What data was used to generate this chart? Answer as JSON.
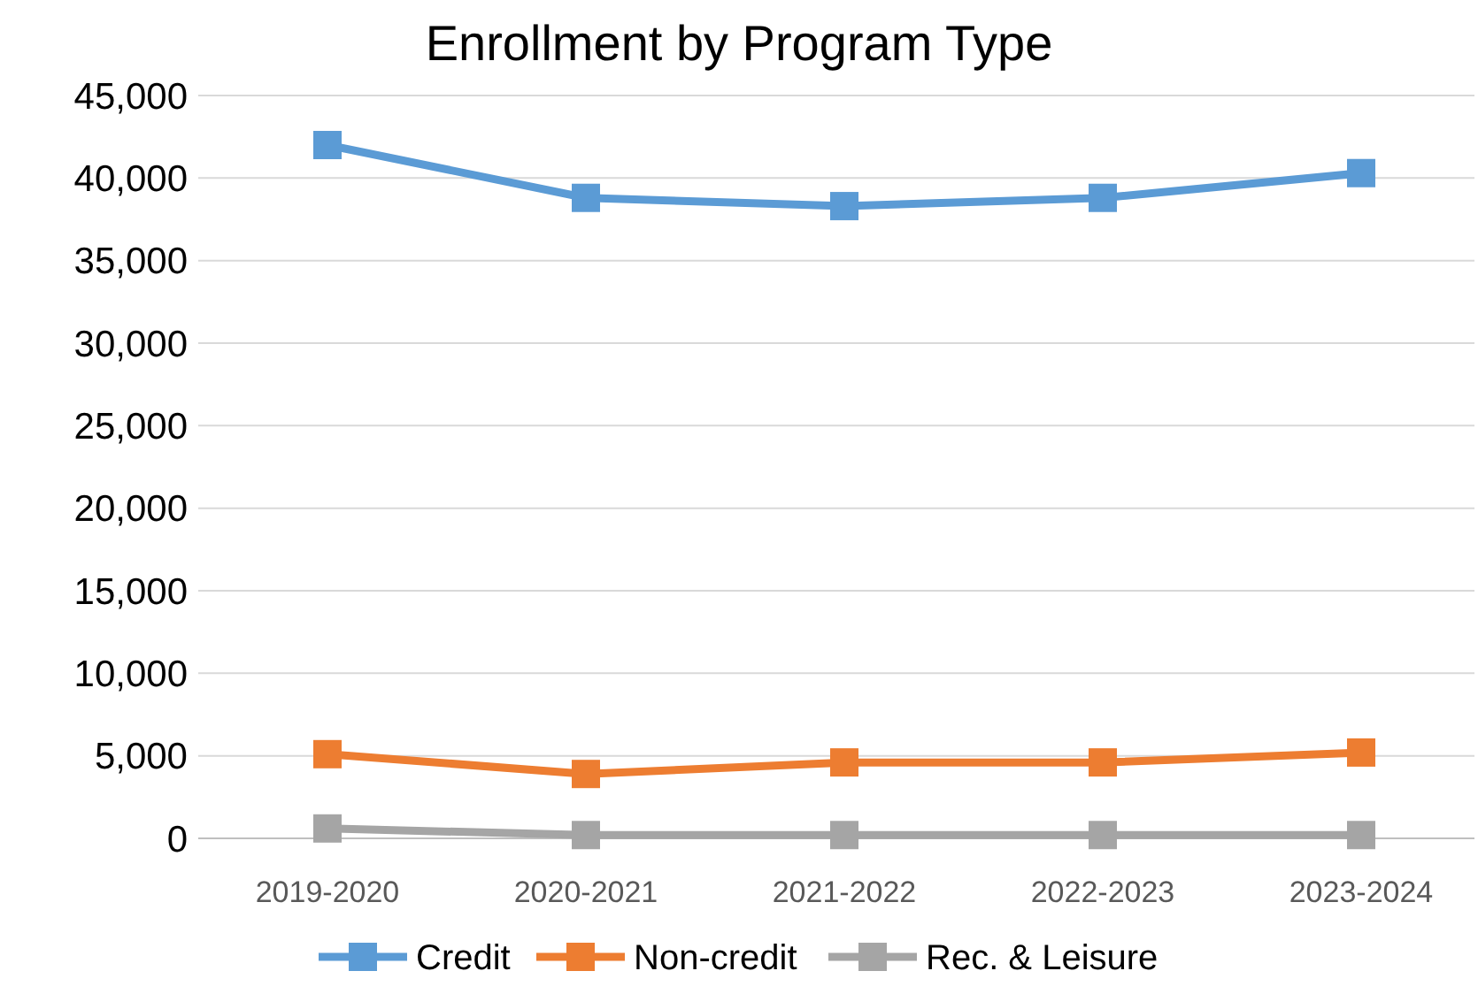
{
  "chart_data": {
    "type": "line",
    "title": "Enrollment by Program Type",
    "categories": [
      "2019-2020",
      "2020-2021",
      "2021-2022",
      "2022-2023",
      "2023-2024"
    ],
    "series": [
      {
        "name": "Credit",
        "color": "#5b9bd5",
        "values": [
          42000,
          38800,
          38300,
          38800,
          40300
        ]
      },
      {
        "name": "Non-credit",
        "color": "#ed7d31",
        "values": [
          5100,
          3900,
          4600,
          4600,
          5200
        ]
      },
      {
        "name": "Rec. & Leisure",
        "color": "#a5a5a5",
        "values": [
          600,
          200,
          200,
          200,
          200
        ]
      }
    ],
    "ylim": [
      0,
      45000
    ],
    "yticks": [
      {
        "value": 0,
        "label": "0"
      },
      {
        "value": 5000,
        "label": "5,000"
      },
      {
        "value": 10000,
        "label": "10,000"
      },
      {
        "value": 15000,
        "label": "15,000"
      },
      {
        "value": 20000,
        "label": "20,000"
      },
      {
        "value": 25000,
        "label": "25,000"
      },
      {
        "value": 30000,
        "label": "30,000"
      },
      {
        "value": 35000,
        "label": "35,000"
      },
      {
        "value": 40000,
        "label": "40,000"
      },
      {
        "value": 45000,
        "label": "45,000"
      }
    ],
    "grid": "y",
    "legend": "bottom",
    "marker": "square",
    "line_style": "solid"
  }
}
